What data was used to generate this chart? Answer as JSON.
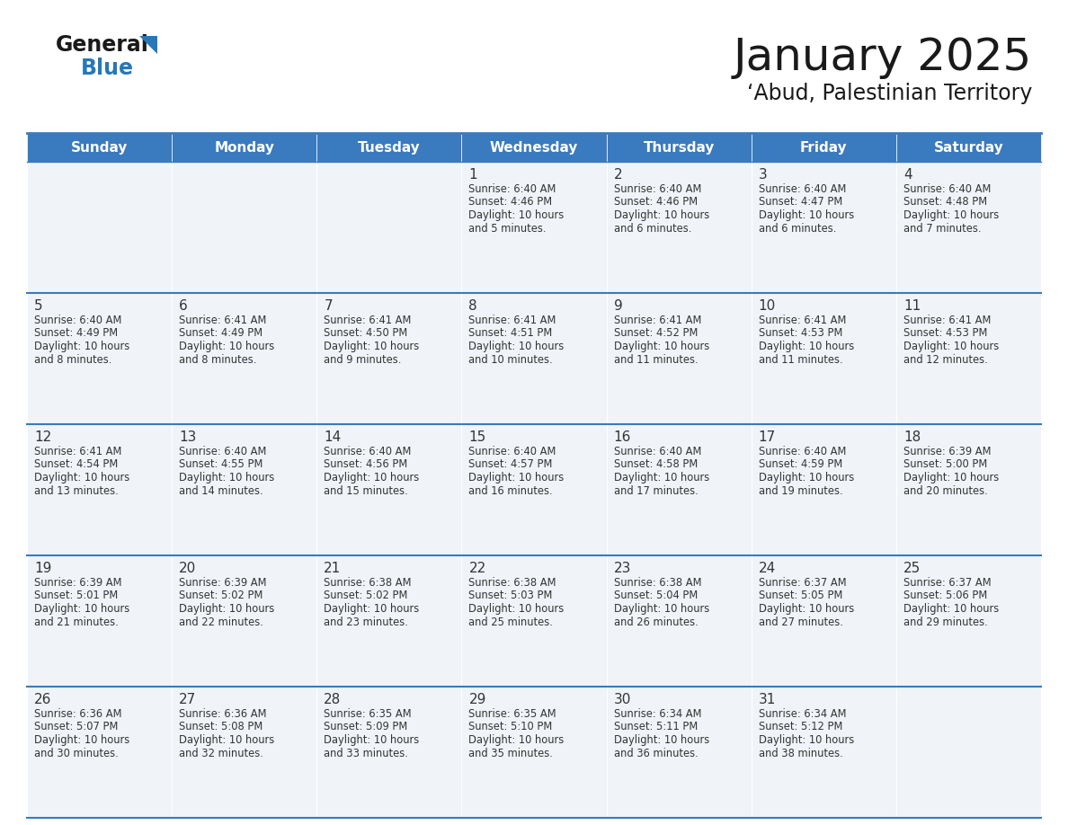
{
  "title": "January 2025",
  "subtitle": "‘Abud, Palestinian Territory",
  "days_of_week": [
    "Sunday",
    "Monday",
    "Tuesday",
    "Wednesday",
    "Thursday",
    "Friday",
    "Saturday"
  ],
  "header_bg": "#3a7abf",
  "header_text": "#ffffff",
  "cell_bg": "#f0f4f8",
  "line_color": "#3a7abf",
  "text_color": "#333333",
  "logo_general_color": "#1a1a1a",
  "logo_blue_color": "#2878b8",
  "logo_triangle_color": "#2878b8",
  "calendar_data": [
    [
      {
        "day": null
      },
      {
        "day": null
      },
      {
        "day": null
      },
      {
        "day": 1,
        "sunrise": "6:40 AM",
        "sunset": "4:46 PM",
        "daylight_main": "Daylight: 10 hours",
        "daylight_sub": "and 5 minutes."
      },
      {
        "day": 2,
        "sunrise": "6:40 AM",
        "sunset": "4:46 PM",
        "daylight_main": "Daylight: 10 hours",
        "daylight_sub": "and 6 minutes."
      },
      {
        "day": 3,
        "sunrise": "6:40 AM",
        "sunset": "4:47 PM",
        "daylight_main": "Daylight: 10 hours",
        "daylight_sub": "and 6 minutes."
      },
      {
        "day": 4,
        "sunrise": "6:40 AM",
        "sunset": "4:48 PM",
        "daylight_main": "Daylight: 10 hours",
        "daylight_sub": "and 7 minutes."
      }
    ],
    [
      {
        "day": 5,
        "sunrise": "6:40 AM",
        "sunset": "4:49 PM",
        "daylight_main": "Daylight: 10 hours",
        "daylight_sub": "and 8 minutes."
      },
      {
        "day": 6,
        "sunrise": "6:41 AM",
        "sunset": "4:49 PM",
        "daylight_main": "Daylight: 10 hours",
        "daylight_sub": "and 8 minutes."
      },
      {
        "day": 7,
        "sunrise": "6:41 AM",
        "sunset": "4:50 PM",
        "daylight_main": "Daylight: 10 hours",
        "daylight_sub": "and 9 minutes."
      },
      {
        "day": 8,
        "sunrise": "6:41 AM",
        "sunset": "4:51 PM",
        "daylight_main": "Daylight: 10 hours",
        "daylight_sub": "and 10 minutes."
      },
      {
        "day": 9,
        "sunrise": "6:41 AM",
        "sunset": "4:52 PM",
        "daylight_main": "Daylight: 10 hours",
        "daylight_sub": "and 11 minutes."
      },
      {
        "day": 10,
        "sunrise": "6:41 AM",
        "sunset": "4:53 PM",
        "daylight_main": "Daylight: 10 hours",
        "daylight_sub": "and 11 minutes."
      },
      {
        "day": 11,
        "sunrise": "6:41 AM",
        "sunset": "4:53 PM",
        "daylight_main": "Daylight: 10 hours",
        "daylight_sub": "and 12 minutes."
      }
    ],
    [
      {
        "day": 12,
        "sunrise": "6:41 AM",
        "sunset": "4:54 PM",
        "daylight_main": "Daylight: 10 hours",
        "daylight_sub": "and 13 minutes."
      },
      {
        "day": 13,
        "sunrise": "6:40 AM",
        "sunset": "4:55 PM",
        "daylight_main": "Daylight: 10 hours",
        "daylight_sub": "and 14 minutes."
      },
      {
        "day": 14,
        "sunrise": "6:40 AM",
        "sunset": "4:56 PM",
        "daylight_main": "Daylight: 10 hours",
        "daylight_sub": "and 15 minutes."
      },
      {
        "day": 15,
        "sunrise": "6:40 AM",
        "sunset": "4:57 PM",
        "daylight_main": "Daylight: 10 hours",
        "daylight_sub": "and 16 minutes."
      },
      {
        "day": 16,
        "sunrise": "6:40 AM",
        "sunset": "4:58 PM",
        "daylight_main": "Daylight: 10 hours",
        "daylight_sub": "and 17 minutes."
      },
      {
        "day": 17,
        "sunrise": "6:40 AM",
        "sunset": "4:59 PM",
        "daylight_main": "Daylight: 10 hours",
        "daylight_sub": "and 19 minutes."
      },
      {
        "day": 18,
        "sunrise": "6:39 AM",
        "sunset": "5:00 PM",
        "daylight_main": "Daylight: 10 hours",
        "daylight_sub": "and 20 minutes."
      }
    ],
    [
      {
        "day": 19,
        "sunrise": "6:39 AM",
        "sunset": "5:01 PM",
        "daylight_main": "Daylight: 10 hours",
        "daylight_sub": "and 21 minutes."
      },
      {
        "day": 20,
        "sunrise": "6:39 AM",
        "sunset": "5:02 PM",
        "daylight_main": "Daylight: 10 hours",
        "daylight_sub": "and 22 minutes."
      },
      {
        "day": 21,
        "sunrise": "6:38 AM",
        "sunset": "5:02 PM",
        "daylight_main": "Daylight: 10 hours",
        "daylight_sub": "and 23 minutes."
      },
      {
        "day": 22,
        "sunrise": "6:38 AM",
        "sunset": "5:03 PM",
        "daylight_main": "Daylight: 10 hours",
        "daylight_sub": "and 25 minutes."
      },
      {
        "day": 23,
        "sunrise": "6:38 AM",
        "sunset": "5:04 PM",
        "daylight_main": "Daylight: 10 hours",
        "daylight_sub": "and 26 minutes."
      },
      {
        "day": 24,
        "sunrise": "6:37 AM",
        "sunset": "5:05 PM",
        "daylight_main": "Daylight: 10 hours",
        "daylight_sub": "and 27 minutes."
      },
      {
        "day": 25,
        "sunrise": "6:37 AM",
        "sunset": "5:06 PM",
        "daylight_main": "Daylight: 10 hours",
        "daylight_sub": "and 29 minutes."
      }
    ],
    [
      {
        "day": 26,
        "sunrise": "6:36 AM",
        "sunset": "5:07 PM",
        "daylight_main": "Daylight: 10 hours",
        "daylight_sub": "and 30 minutes."
      },
      {
        "day": 27,
        "sunrise": "6:36 AM",
        "sunset": "5:08 PM",
        "daylight_main": "Daylight: 10 hours",
        "daylight_sub": "and 32 minutes."
      },
      {
        "day": 28,
        "sunrise": "6:35 AM",
        "sunset": "5:09 PM",
        "daylight_main": "Daylight: 10 hours",
        "daylight_sub": "and 33 minutes."
      },
      {
        "day": 29,
        "sunrise": "6:35 AM",
        "sunset": "5:10 PM",
        "daylight_main": "Daylight: 10 hours",
        "daylight_sub": "and 35 minutes."
      },
      {
        "day": 30,
        "sunrise": "6:34 AM",
        "sunset": "5:11 PM",
        "daylight_main": "Daylight: 10 hours",
        "daylight_sub": "and 36 minutes."
      },
      {
        "day": 31,
        "sunrise": "6:34 AM",
        "sunset": "5:12 PM",
        "daylight_main": "Daylight: 10 hours",
        "daylight_sub": "and 38 minutes."
      },
      {
        "day": null
      }
    ]
  ]
}
